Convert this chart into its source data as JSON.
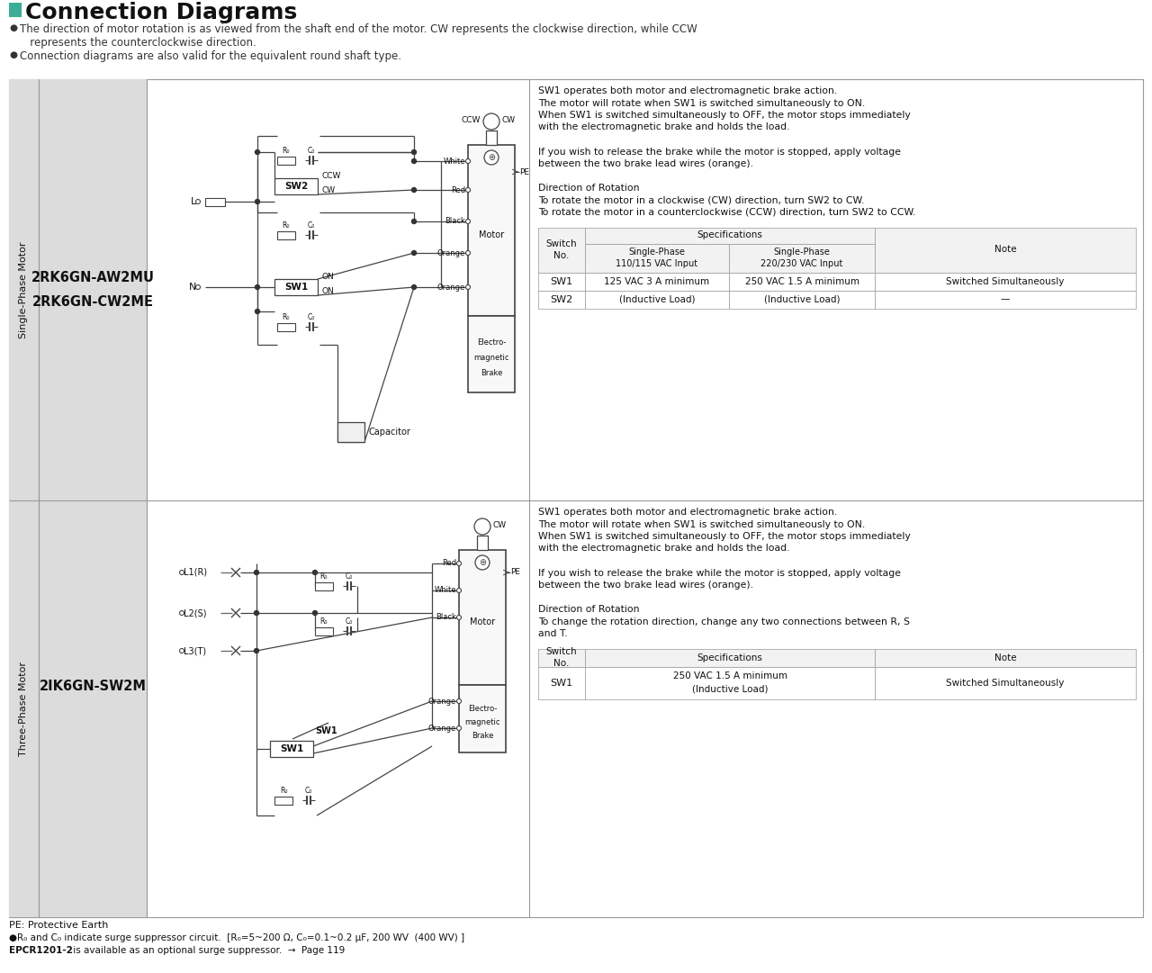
{
  "title": "Connection Diagrams",
  "bg_color": "#FFFFFF",
  "header_line1": "The direction of motor rotation is as viewed from the shaft end of the motor. CW represents the clockwise direction, while CCW",
  "header_line2": "   represents the counterclockwise direction.",
  "header_line3": "Connection diagrams are also valid for the equivalent round shaft type.",
  "row1_label_vertical": "Single-Phase Motor",
  "row1_model": "2RK6GN-AW2MU\n2RK6GN-CW2ME",
  "row2_label_vertical": "Three-Phase Motor",
  "row2_model": "2IK6GN-SW2M",
  "row1_desc": [
    "SW1 operates both motor and electromagnetic brake action.",
    "The motor will rotate when SW1 is switched simultaneously to ON.",
    "When SW1 is switched simultaneously to OFF, the motor stops immediately",
    "with the electromagnetic brake and holds the load.",
    "",
    "If you wish to release the brake while the motor is stopped, apply voltage",
    "between the two brake lead wires (orange).",
    "",
    "Direction of Rotation",
    "To rotate the motor in a clockwise (CW) direction, turn SW2 to CW.",
    "To rotate the motor in a counterclockwise (CCW) direction, turn SW2 to CCW."
  ],
  "row2_desc": [
    "SW1 operates both motor and electromagnetic brake action.",
    "The motor will rotate when SW1 is switched simultaneously to ON.",
    "When SW1 is switched simultaneously to OFF, the motor stops immediately",
    "with the electromagnetic brake and holds the load.",
    "",
    "If you wish to release the brake while the motor is stopped, apply voltage",
    "between the two brake lead wires (orange).",
    "",
    "Direction of Rotation",
    "To change the rotation direction, change any two connections between R, S",
    "and T."
  ],
  "table1_rows": [
    [
      "SW1",
      "125 VAC 3 A minimum",
      "250 VAC 1.5 A minimum",
      "Switched Simultaneously"
    ],
    [
      "SW2",
      "(Inductive Load)",
      "(Inductive Load)",
      "—"
    ]
  ],
  "table2_rows": [
    [
      "SW1",
      "250 VAC 1.5 A minimum\n(Inductive Load)",
      "Switched Simultaneously"
    ]
  ],
  "footer_line1": "PE: Protective Earth",
  "footer_line2": "●R₀ and C₀ indicate surge suppressor circuit.  [R₀=5~200 Ω, C₀=0.1~0.2 μF, 200 WV  (400 WV) ]",
  "footer_bold": "EPCR1201-2",
  "footer_line3_rest": " is available as an optional surge suppressor.  →  Page 119",
  "gray_bg": "#DCDCDC",
  "table_header_bg": "#F2F2F2",
  "border_color": "#999999",
  "line_color": "#444444",
  "text_color": "#111111",
  "title_green": "#3DAD97"
}
